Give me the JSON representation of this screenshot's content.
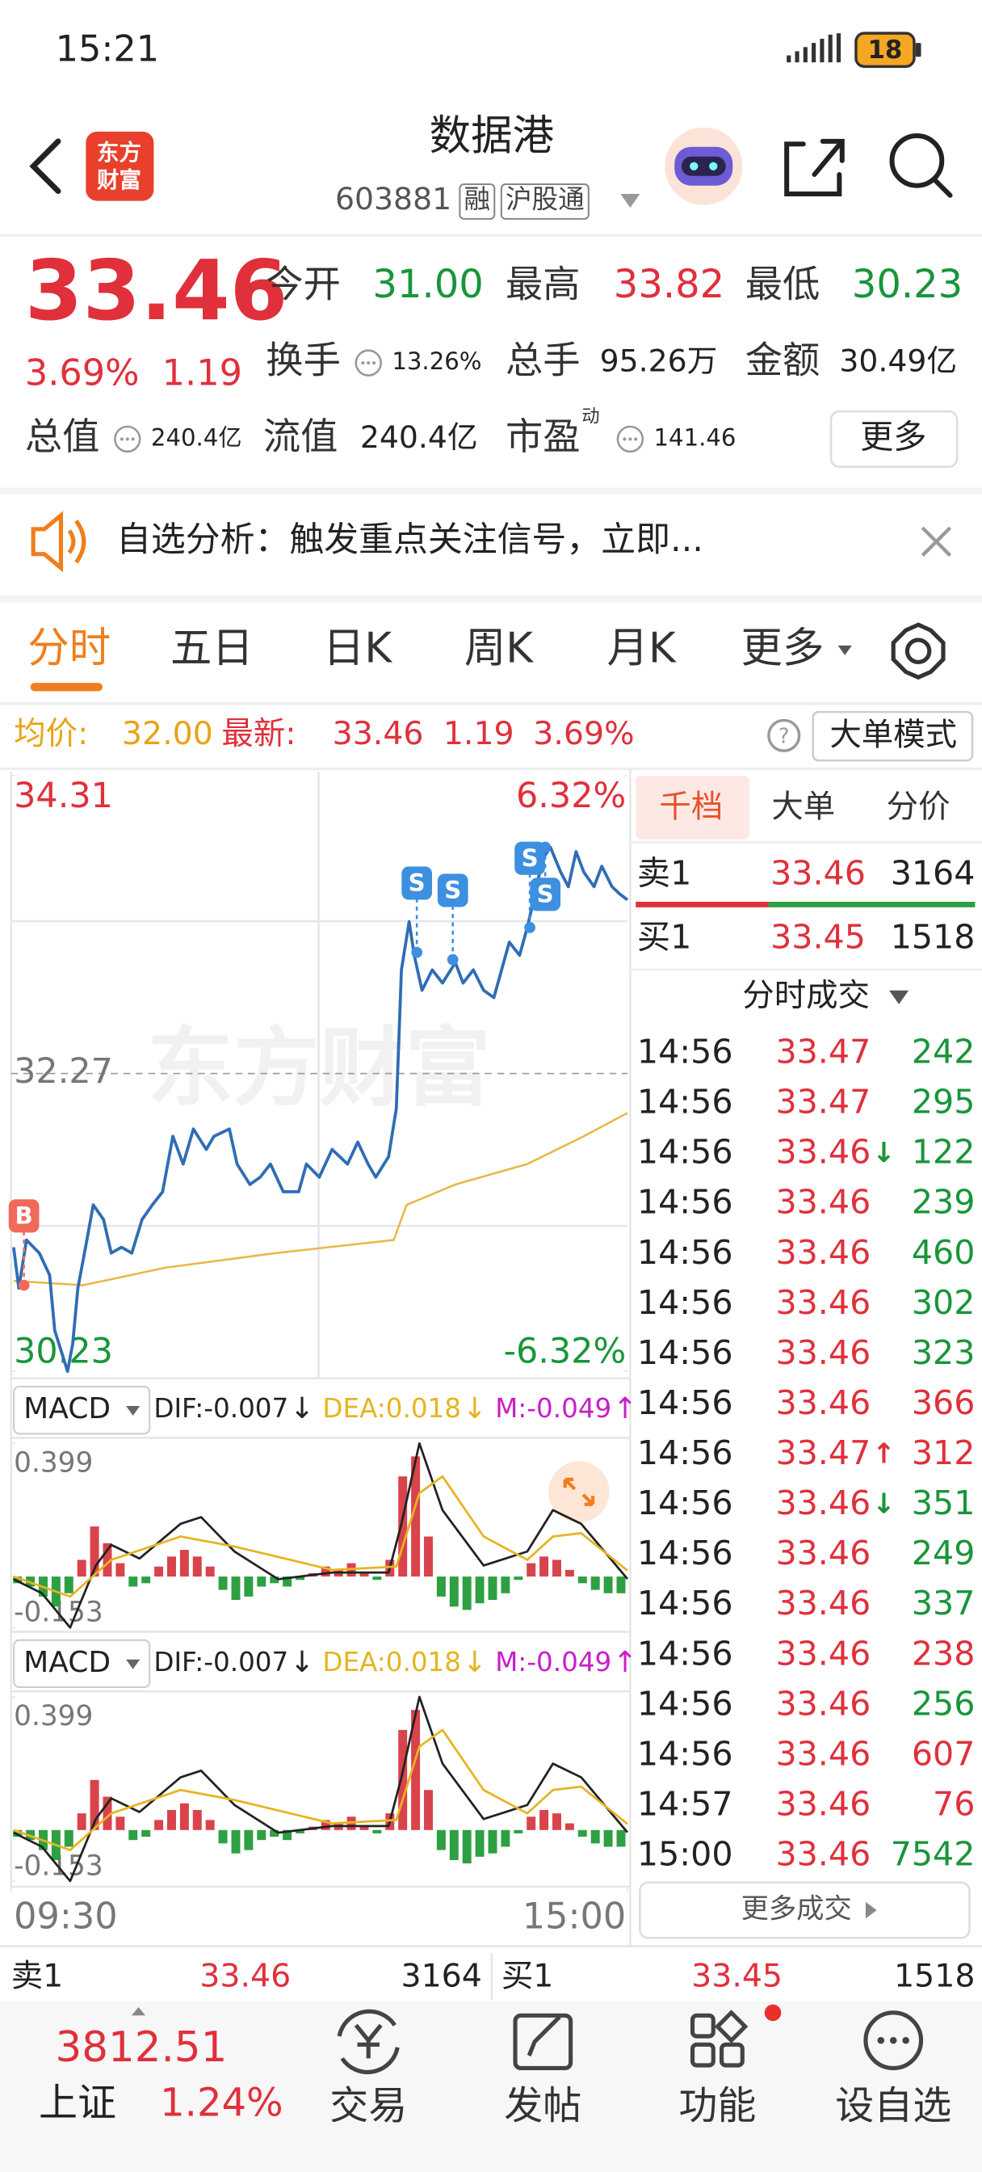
{
  "status_bar": {
    "time": "15:21",
    "battery": "18"
  },
  "header": {
    "logo": [
      "东方",
      "财富"
    ],
    "title": "数据港",
    "code": "603881",
    "tags": [
      "融",
      "沪股通"
    ]
  },
  "quote": {
    "price": "33.46",
    "change_pct": "3.69%",
    "change": "1.19",
    "fields": [
      {
        "label": "今开",
        "value": "31.00",
        "color": "#19953a"
      },
      {
        "label": "最高",
        "value": "33.82",
        "color": "#e0303b"
      },
      {
        "label": "最低",
        "value": "30.23",
        "color": "#19953a"
      },
      {
        "label": "换手",
        "value": "13.26%",
        "color": "#222222",
        "info_icon": true
      },
      {
        "label": "总手",
        "value": "95.26万",
        "color": "#222222"
      },
      {
        "label": "金额",
        "value": "30.49亿",
        "color": "#222222"
      },
      {
        "label": "总值",
        "value": "240.4亿",
        "color": "#222222",
        "info_icon": true
      },
      {
        "label": "流值",
        "value": "240.4亿",
        "color": "#222222"
      },
      {
        "label": "市盈",
        "superscript": "动",
        "value": "141.46",
        "color": "#222222",
        "info_icon": true
      }
    ],
    "more": "更多"
  },
  "banner": {
    "text": "自选分析：触发重点关注信号，立即..."
  },
  "tabs": {
    "items": [
      "分时",
      "五日",
      "日K",
      "周K",
      "月K",
      "更多"
    ],
    "active": 0
  },
  "info_bar": {
    "avg_label": "均价:",
    "avg": "32.00",
    "latest_label": "最新:",
    "latest": "33.46",
    "change": "1.19",
    "change_pct": "3.69%",
    "mode_button": "大单模式"
  },
  "chart_data": [
    {
      "type": "line",
      "watermark": "东方财富",
      "xlim": [
        0,
        240
      ],
      "xticks": [
        {
          "value": 0,
          "label": "09:30"
        },
        {
          "value": 240,
          "label": "15:00"
        }
      ],
      "ylim": [
        30.23,
        34.31
      ],
      "yticks": [
        34.31,
        32.27,
        30.23
      ],
      "y2lim": [
        -6.32,
        6.32
      ],
      "y2ticks": [
        {
          "value": 6.32,
          "label": "6.32%"
        },
        {
          "value": -6.32,
          "label": "-6.32%"
        }
      ],
      "series": [
        {
          "color": "#2f6db5",
          "x": [
            1,
            3,
            6,
            11,
            15,
            17,
            22,
            24,
            26,
            29,
            32,
            36,
            39,
            43,
            47,
            51,
            55,
            59,
            63,
            67,
            71,
            76,
            79,
            85,
            88,
            93,
            97,
            101,
            106,
            112,
            115,
            120,
            125,
            131,
            135,
            139,
            142,
            147,
            150,
            152,
            155,
            157,
            160,
            164,
            168,
            173,
            176,
            180,
            184,
            188,
            191,
            194,
            198,
            201,
            204,
            207,
            210,
            214,
            217,
            220,
            223,
            227,
            230,
            234,
            237,
            240
          ],
          "values": [
            31.08,
            30.8,
            31.13,
            31.04,
            30.89,
            30.51,
            30.23,
            30.42,
            30.8,
            31.08,
            31.37,
            31.27,
            31.04,
            31.08,
            31.04,
            31.27,
            31.37,
            31.46,
            31.84,
            31.65,
            31.89,
            31.75,
            31.84,
            31.89,
            31.65,
            31.51,
            31.56,
            31.65,
            31.46,
            31.46,
            31.65,
            31.56,
            31.75,
            31.65,
            31.8,
            31.65,
            31.56,
            31.7,
            32.03,
            32.98,
            33.31,
            33.08,
            32.84,
            32.98,
            32.89,
            33.03,
            32.89,
            32.98,
            32.84,
            32.79,
            32.98,
            33.17,
            33.08,
            33.27,
            33.5,
            33.74,
            33.82,
            33.65,
            33.55,
            33.79,
            33.65,
            33.55,
            33.69,
            33.55,
            33.5,
            33.46
          ]
        },
        {
          "color": "#e8b84a",
          "x": [
            1,
            28,
            60,
            103,
            149,
            154,
            173,
            201,
            223,
            240
          ],
          "values": [
            30.85,
            30.82,
            30.94,
            31.04,
            31.13,
            31.37,
            31.51,
            31.65,
            31.84,
            32.0
          ]
        }
      ],
      "markers": [
        {
          "label": "B",
          "x": 5,
          "y": 30.82,
          "position": "above",
          "color": "#ef6a5a"
        },
        {
          "label": "S",
          "x": 158,
          "y": 33.1,
          "position": "above",
          "color": "#3d8fe0"
        },
        {
          "label": "S",
          "x": 172,
          "y": 33.05,
          "position": "above",
          "color": "#3d8fe0"
        },
        {
          "label": "S",
          "x": 202,
          "y": 33.27,
          "position": "above",
          "color": "#3d8fe0"
        },
        {
          "label": "S",
          "x": 208,
          "y": 33.82,
          "position": "below",
          "color": "#3d8fe0"
        }
      ]
    },
    {
      "type": "macd",
      "name": "MACD",
      "indicators": [
        {
          "label": "DIF:-0.007",
          "arrow": "↓",
          "color": "#222222"
        },
        {
          "label": "DEA:0.018",
          "arrow": "↓",
          "color": "#e6b422"
        },
        {
          "label": "M:-0.049",
          "arrow": "↑",
          "color": "#c81ec8"
        }
      ],
      "xlim": [
        0,
        240
      ],
      "ylim": [
        -0.153,
        0.399
      ],
      "yticks": [
        0.399,
        -0.153
      ],
      "histogram": {
        "up_color": "#d9434b",
        "down_color": "#2ea043",
        "x": [
          2.5,
          7.5,
          12.5,
          17.5,
          22.5,
          27.5,
          32.5,
          37.5,
          42.5,
          47.5,
          52.5,
          57.5,
          62.5,
          67.5,
          72.5,
          77.5,
          82.5,
          87.5,
          92.5,
          97.5,
          102.5,
          107.5,
          112.5,
          117.5,
          122.5,
          127.5,
          132.5,
          137.5,
          142.5,
          147.5,
          152.5,
          157.5,
          162.5,
          167.5,
          172.5,
          177.5,
          182.5,
          187.5,
          192.5,
          197.5,
          202.5,
          207.5,
          212.5,
          217.5,
          222.5,
          227.5,
          232.5,
          237.5
        ],
        "values": [
          -0.02,
          -0.03,
          -0.06,
          -0.09,
          -0.05,
          0.05,
          0.15,
          0.1,
          0.04,
          -0.03,
          -0.02,
          0.03,
          0.06,
          0.08,
          0.06,
          0.03,
          -0.04,
          -0.07,
          -0.06,
          -0.03,
          -0.02,
          -0.03,
          -0.01,
          0.01,
          0.03,
          0.02,
          0.04,
          0.01,
          -0.01,
          0.05,
          0.3,
          0.36,
          0.12,
          -0.06,
          -0.09,
          -0.1,
          -0.08,
          -0.07,
          -0.05,
          -0.01,
          0.04,
          0.06,
          0.05,
          0.02,
          -0.02,
          -0.04,
          -0.05,
          -0.05
        ]
      },
      "series": [
        {
          "color": "#222222",
          "x": [
            1,
            12,
            23,
            33,
            39,
            50,
            66,
            74,
            87,
            104,
            125,
            147,
            152,
            159,
            168,
            184,
            201,
            211,
            222,
            240
          ],
          "values": [
            -0.008,
            -0.05,
            -0.153,
            0.033,
            0.095,
            0.054,
            0.158,
            0.178,
            0.075,
            -0.008,
            0.012,
            0.012,
            0.158,
            0.399,
            0.199,
            0.033,
            0.075,
            0.199,
            0.158,
            -0.007
          ]
        },
        {
          "color": "#e6b422",
          "x": [
            1,
            23,
            39,
            66,
            87,
            125,
            150,
            159,
            168,
            184,
            201,
            211,
            222,
            240
          ],
          "values": [
            0,
            -0.06,
            0.05,
            0.12,
            0.09,
            0.02,
            0.03,
            0.25,
            0.3,
            0.12,
            0.05,
            0.12,
            0.13,
            0.018
          ]
        }
      ]
    },
    {
      "type": "macd",
      "name": "MACD",
      "indicators": [
        {
          "label": "DIF:-0.007",
          "arrow": "↓",
          "color": "#222222"
        },
        {
          "label": "DEA:0.018",
          "arrow": "↓",
          "color": "#e6b422"
        },
        {
          "label": "M:-0.049",
          "arrow": "↑",
          "color": "#c81ec8"
        }
      ],
      "xlim": [
        0,
        240
      ],
      "ylim": [
        -0.153,
        0.399
      ],
      "yticks": [
        0.399,
        -0.153
      ],
      "histogram": {
        "up_color": "#d9434b",
        "down_color": "#2ea043",
        "x": [
          2.5,
          7.5,
          12.5,
          17.5,
          22.5,
          27.5,
          32.5,
          37.5,
          42.5,
          47.5,
          52.5,
          57.5,
          62.5,
          67.5,
          72.5,
          77.5,
          82.5,
          87.5,
          92.5,
          97.5,
          102.5,
          107.5,
          112.5,
          117.5,
          122.5,
          127.5,
          132.5,
          137.5,
          142.5,
          147.5,
          152.5,
          157.5,
          162.5,
          167.5,
          172.5,
          177.5,
          182.5,
          187.5,
          192.5,
          197.5,
          202.5,
          207.5,
          212.5,
          217.5,
          222.5,
          227.5,
          232.5,
          237.5
        ],
        "values": [
          -0.02,
          -0.03,
          -0.06,
          -0.09,
          -0.05,
          0.05,
          0.15,
          0.1,
          0.04,
          -0.03,
          -0.02,
          0.03,
          0.06,
          0.08,
          0.06,
          0.03,
          -0.04,
          -0.07,
          -0.06,
          -0.03,
          -0.02,
          -0.03,
          -0.01,
          0.01,
          0.03,
          0.02,
          0.04,
          0.01,
          -0.01,
          0.05,
          0.3,
          0.36,
          0.12,
          -0.06,
          -0.09,
          -0.1,
          -0.08,
          -0.07,
          -0.05,
          -0.01,
          0.04,
          0.06,
          0.05,
          0.02,
          -0.02,
          -0.04,
          -0.05,
          -0.05
        ]
      },
      "series": [
        {
          "color": "#222222",
          "x": [
            1,
            12,
            23,
            33,
            39,
            50,
            66,
            74,
            87,
            104,
            125,
            147,
            152,
            159,
            168,
            184,
            201,
            211,
            222,
            240
          ],
          "values": [
            -0.008,
            -0.05,
            -0.153,
            0.033,
            0.095,
            0.054,
            0.158,
            0.178,
            0.075,
            -0.008,
            0.012,
            0.012,
            0.158,
            0.399,
            0.199,
            0.033,
            0.075,
            0.199,
            0.158,
            -0.007
          ]
        },
        {
          "color": "#e6b422",
          "x": [
            1,
            23,
            39,
            66,
            87,
            125,
            150,
            159,
            168,
            184,
            201,
            211,
            222,
            240
          ],
          "values": [
            0,
            -0.06,
            0.05,
            0.12,
            0.09,
            0.02,
            0.03,
            0.25,
            0.3,
            0.12,
            0.05,
            0.12,
            0.13,
            0.018
          ]
        }
      ]
    }
  ],
  "order_panel": {
    "tabs": [
      "千档",
      "大单",
      "分价"
    ],
    "active_tab": 0,
    "ask": {
      "label": "卖1",
      "price": "33.46",
      "volume": "3164"
    },
    "bid": {
      "label": "买1",
      "price": "33.45",
      "volume": "1518"
    },
    "trades_title": "分时成交",
    "trades": [
      {
        "time": "14:56",
        "price": "33.47",
        "volume": "242",
        "side": "sell"
      },
      {
        "time": "14:56",
        "price": "33.47",
        "volume": "295",
        "side": "sell"
      },
      {
        "time": "14:56",
        "price": "33.46",
        "arrow": "↓",
        "volume": "122",
        "side": "sell"
      },
      {
        "time": "14:56",
        "price": "33.46",
        "volume": "239",
        "side": "sell"
      },
      {
        "time": "14:56",
        "price": "33.46",
        "volume": "460",
        "side": "sell"
      },
      {
        "time": "14:56",
        "price": "33.46",
        "volume": "302",
        "side": "sell"
      },
      {
        "time": "14:56",
        "price": "33.46",
        "volume": "323",
        "side": "sell"
      },
      {
        "time": "14:56",
        "price": "33.46",
        "volume": "366",
        "side": "buy"
      },
      {
        "time": "14:56",
        "price": "33.47",
        "arrow": "↑",
        "volume": "312",
        "side": "buy"
      },
      {
        "time": "14:56",
        "price": "33.46",
        "arrow": "↓",
        "volume": "351",
        "side": "sell"
      },
      {
        "time": "14:56",
        "price": "33.46",
        "volume": "249",
        "side": "sell"
      },
      {
        "time": "14:56",
        "price": "33.46",
        "volume": "337",
        "side": "sell"
      },
      {
        "time": "14:56",
        "price": "33.46",
        "volume": "238",
        "side": "buy"
      },
      {
        "time": "14:56",
        "price": "33.46",
        "volume": "256",
        "side": "sell"
      },
      {
        "time": "14:56",
        "price": "33.46",
        "volume": "607",
        "side": "buy"
      },
      {
        "time": "14:57",
        "price": "33.46",
        "volume": "76",
        "side": "buy"
      },
      {
        "time": "15:00",
        "price": "33.46",
        "volume": "7542",
        "side": "sell"
      }
    ],
    "more_trades": "更多成交"
  },
  "index": {
    "value": "3812.51",
    "name": "上证",
    "change_pct": "1.24%"
  },
  "nav": [
    "交易",
    "发帖",
    "功能",
    "设自选"
  ]
}
